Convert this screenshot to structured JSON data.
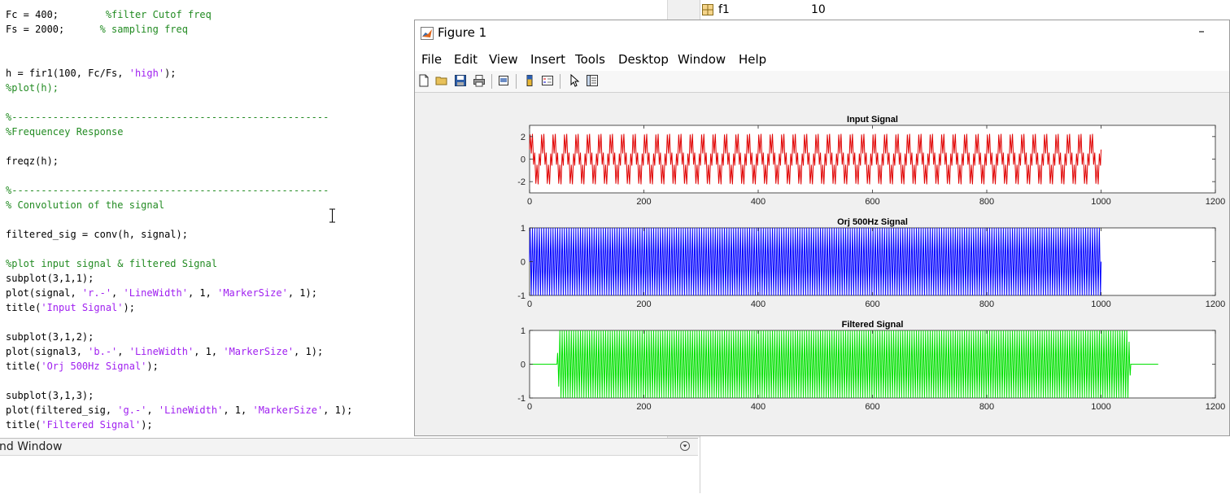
{
  "editor": {
    "lines": [
      [
        [
          "Fc = 400;        ",
          "n"
        ],
        [
          "%filter Cutof freq",
          "c"
        ]
      ],
      [
        [
          "Fs = 2000;      ",
          "n"
        ],
        [
          "% sampling freq",
          "c"
        ]
      ],
      [],
      [],
      [
        [
          "h = fir1(100, Fc/Fs, ",
          "n"
        ],
        [
          "'high'",
          "s"
        ],
        [
          ");",
          "n"
        ]
      ],
      [
        [
          "%plot(h);",
          "c"
        ]
      ],
      [],
      [
        [
          "%------------------------------------------------------",
          "c"
        ]
      ],
      [
        [
          "%Frequencey Response",
          "c"
        ]
      ],
      [],
      [
        [
          "freqz(h);",
          "n"
        ]
      ],
      [],
      [
        [
          "%------------------------------------------------------",
          "c"
        ]
      ],
      [
        [
          "% Convolution of the signal",
          "c"
        ]
      ],
      [],
      [
        [
          "filtered_sig = conv(h, signal);",
          "n"
        ]
      ],
      [],
      [
        [
          "%plot input signal & filtered Signal",
          "c"
        ]
      ],
      [
        [
          "subplot(3,1,1);",
          "n"
        ]
      ],
      [
        [
          "plot(signal, ",
          "n"
        ],
        [
          "'r.-'",
          "s"
        ],
        [
          ", ",
          "n"
        ],
        [
          "'LineWidth'",
          "s"
        ],
        [
          ", 1, ",
          "n"
        ],
        [
          "'MarkerSize'",
          "s"
        ],
        [
          ", 1);",
          "n"
        ]
      ],
      [
        [
          "title(",
          "n"
        ],
        [
          "'Input Signal'",
          "s"
        ],
        [
          ");",
          "n"
        ]
      ],
      [],
      [
        [
          "subplot(3,1,2);",
          "n"
        ]
      ],
      [
        [
          "plot(signal3, ",
          "n"
        ],
        [
          "'b.-'",
          "s"
        ],
        [
          ", ",
          "n"
        ],
        [
          "'LineWidth'",
          "s"
        ],
        [
          ", 1, ",
          "n"
        ],
        [
          "'MarkerSize'",
          "s"
        ],
        [
          ", 1);",
          "n"
        ]
      ],
      [
        [
          "title(",
          "n"
        ],
        [
          "'Orj 500Hz Signal'",
          "s"
        ],
        [
          ");",
          "n"
        ]
      ],
      [],
      [
        [
          "subplot(3,1,3);",
          "n"
        ]
      ],
      [
        [
          "plot(filtered_sig, ",
          "n"
        ],
        [
          "'g.-'",
          "s"
        ],
        [
          ", ",
          "n"
        ],
        [
          "'LineWidth'",
          "s"
        ],
        [
          ", 1, ",
          "n"
        ],
        [
          "'MarkerSize'",
          "s"
        ],
        [
          ", 1);",
          "n"
        ]
      ],
      [
        [
          "title(",
          "n"
        ],
        [
          "'Filtered Signal'",
          "s"
        ],
        [
          ");",
          "n"
        ]
      ]
    ],
    "colors": {
      "comment": "#228B22",
      "string": "#A020F0",
      "normal": "#000000"
    }
  },
  "command_window": {
    "title": "nd Window"
  },
  "workspace": {
    "var_name": "f1",
    "var_value": "10"
  },
  "figure": {
    "title": "Figure 1",
    "minimize_glyph": "–",
    "menu": [
      "File",
      "Edit",
      "View",
      "Insert",
      "Tools",
      "Desktop",
      "Window",
      "Help"
    ],
    "toolbar_icons": [
      "new-file-icon",
      "open-folder-icon",
      "save-icon",
      "print-icon",
      "print-preview-icon",
      "colorbar-icon",
      "legend-icon",
      "pointer-icon",
      "property-editor-icon"
    ]
  },
  "chart_data": [
    {
      "type": "line",
      "title": "Input Signal",
      "color": "#E00000",
      "xlim": [
        0,
        1200
      ],
      "ylim": [
        -3,
        3
      ],
      "xticks": [
        "0",
        "200",
        "400",
        "600",
        "800",
        "1000",
        "1200"
      ],
      "yticks": [
        "2",
        "0",
        "-2"
      ],
      "yticks_values": [
        2,
        0,
        -2
      ],
      "signal": {
        "kind": "sum-of-sines",
        "n": 1001,
        "amp_hi": 1.0,
        "cycles_hi": 250,
        "amp_lo": 1.5,
        "cycles_lo": 50
      }
    },
    {
      "type": "line",
      "title": "Orj 500Hz Signal",
      "color": "#0000FF",
      "xlim": [
        0,
        1200
      ],
      "ylim": [
        -1,
        1
      ],
      "xticks": [
        "0",
        "200",
        "400",
        "600",
        "800",
        "1000",
        "1200"
      ],
      "yticks": [
        "1",
        "0",
        "-1"
      ],
      "yticks_values": [
        1,
        0,
        -1
      ],
      "signal": {
        "kind": "sine",
        "n": 1001,
        "amp": 1.0,
        "cycles": 250
      }
    },
    {
      "type": "line",
      "title": "Filtered Signal",
      "color": "#00E000",
      "xlim": [
        0,
        1200
      ],
      "ylim": [
        -1,
        1
      ],
      "xticks": [
        "0",
        "200",
        "400",
        "600",
        "800",
        "1000",
        "1200"
      ],
      "yticks": [
        "1",
        "0",
        "-1"
      ],
      "yticks_values": [
        1,
        0,
        -1
      ],
      "signal": {
        "kind": "filtered-burst",
        "n": 1101,
        "active": [
          50,
          1050
        ],
        "amp": 1.0,
        "cycles": 275
      }
    }
  ]
}
